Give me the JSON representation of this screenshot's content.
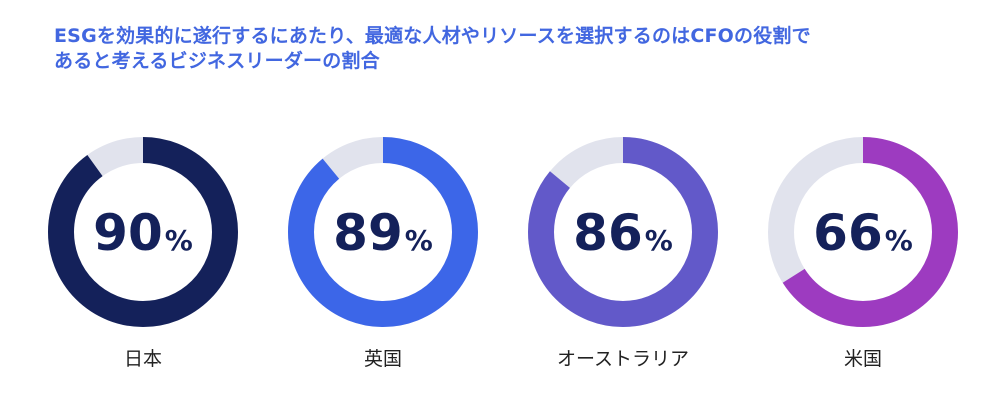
{
  "chart_data": {
    "type": "pie",
    "title_lines": [
      "ESGを効果的に遂行するにあたり、最適な人材やリソースを選択するのはCFOの役割で",
      "あると考えるビジネスリーダーの割合"
    ],
    "unit": "%",
    "categories": [
      "日本",
      "英国",
      "オーストラリア",
      "米国"
    ],
    "values": [
      90,
      89,
      86,
      66
    ],
    "max": 100,
    "colors": [
      "#14215a",
      "#3c66e8",
      "#6259c9",
      "#9d3bc0"
    ],
    "track_color": "#e1e3ed"
  }
}
